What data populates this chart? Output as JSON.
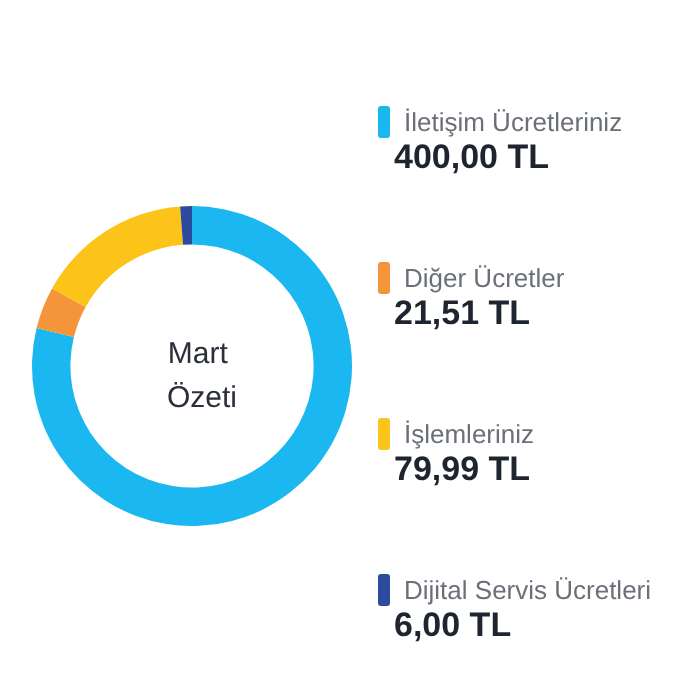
{
  "chart_data": {
    "type": "donut",
    "title": "Mart Özeti",
    "categories": [
      "İletişim Ücretleriniz",
      "Diğer Ücretler",
      "İşlemleriniz",
      "Dijital Servis Ücretleri"
    ],
    "values": [
      400.0,
      21.51,
      79.99,
      6.0
    ],
    "colors": [
      "#1ab7f0",
      "#f5953a",
      "#fcc419",
      "#2c4a9e"
    ],
    "value_labels": [
      "400,00 TL",
      "21,51 TL",
      "79,99 TL",
      "6,00 TL"
    ],
    "legend": "right"
  }
}
